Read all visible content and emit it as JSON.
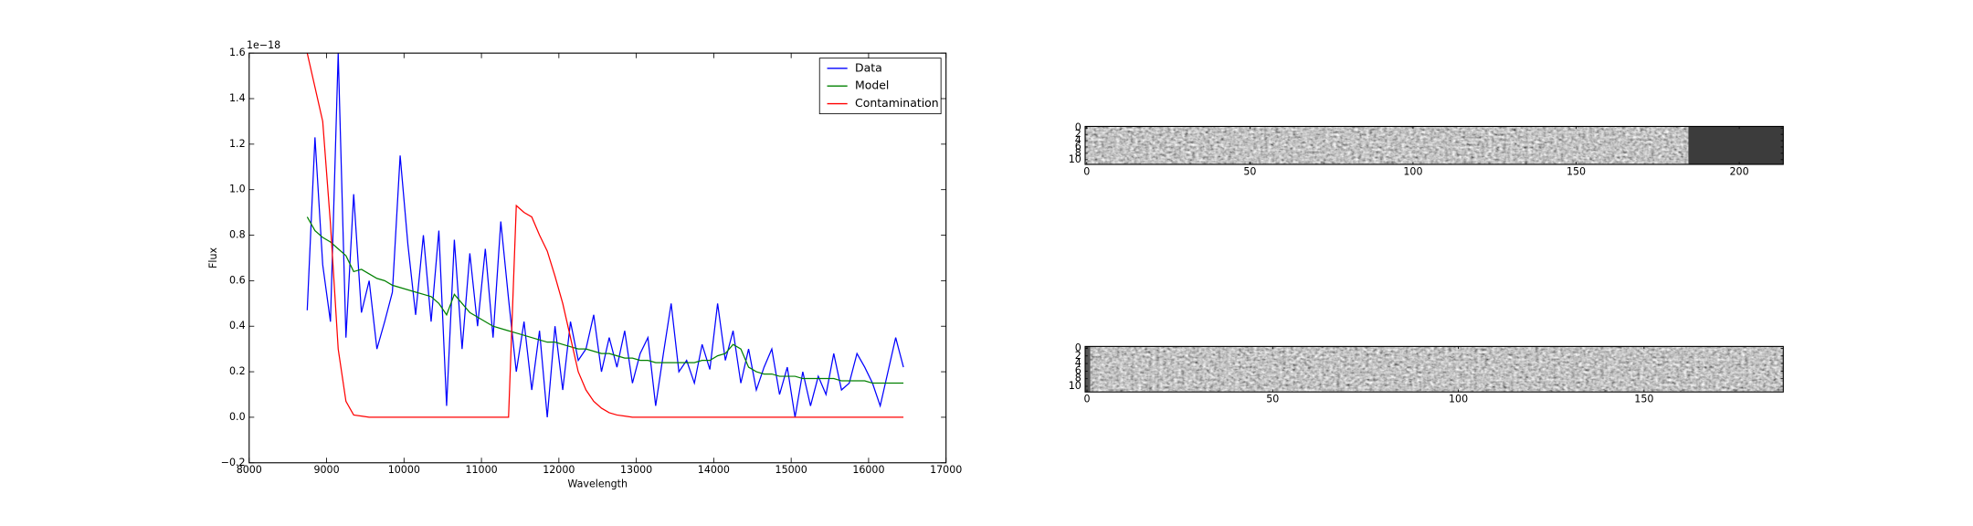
{
  "chart_data": [
    {
      "type": "line",
      "xlabel": "Wavelength",
      "ylabel": "Flux",
      "offset_text": "1e−18",
      "x": [
        8750,
        8850,
        8950,
        9050,
        9150,
        9250,
        9350,
        9450,
        9550,
        9650,
        9750,
        9850,
        9950,
        10050,
        10150,
        10250,
        10350,
        10450,
        10550,
        10650,
        10750,
        10850,
        10950,
        11050,
        11150,
        11250,
        11350,
        11450,
        11550,
        11650,
        11750,
        11850,
        11950,
        12050,
        12150,
        12250,
        12350,
        12450,
        12550,
        12650,
        12750,
        12850,
        12950,
        13050,
        13150,
        13250,
        13350,
        13450,
        13550,
        13650,
        13750,
        13850,
        13950,
        14050,
        14150,
        14250,
        14350,
        14450,
        14550,
        14650,
        14750,
        14850,
        14950,
        15050,
        15150,
        15250,
        15350,
        15450,
        15550,
        15650,
        15750,
        15850,
        15950,
        16050,
        16150,
        16250,
        16350,
        16450
      ],
      "series": [
        {
          "name": "Data",
          "color": "#0000ff",
          "values": [
            0.47,
            1.23,
            0.67,
            0.42,
            1.6,
            0.35,
            0.98,
            0.46,
            0.6,
            0.3,
            0.42,
            0.55,
            1.15,
            0.76,
            0.45,
            0.8,
            0.42,
            0.82,
            0.05,
            0.78,
            0.3,
            0.72,
            0.4,
            0.74,
            0.35,
            0.86,
            0.52,
            0.2,
            0.42,
            0.12,
            0.38,
            0,
            0.4,
            0.12,
            0.42,
            0.25,
            0.3,
            0.45,
            0.2,
            0.35,
            0.22,
            0.38,
            0.15,
            0.28,
            0.35,
            0.05,
            0.28,
            0.5,
            0.2,
            0.25,
            0.15,
            0.32,
            0.21,
            0.5,
            0.25,
            0.38,
            0.15,
            0.3,
            0.12,
            0.22,
            0.3,
            0.1,
            0.22,
            0,
            0.2,
            0.05,
            0.18,
            0.1,
            0.28,
            0.12,
            0.15,
            0.28,
            0.22,
            0.15,
            0.05,
            0.2,
            0.35,
            0.22
          ]
        },
        {
          "name": "Model",
          "color": "#008000",
          "values": [
            0.88,
            0.82,
            0.79,
            0.77,
            0.74,
            0.71,
            0.64,
            0.65,
            0.63,
            0.61,
            0.6,
            0.58,
            0.57,
            0.56,
            0.55,
            0.54,
            0.53,
            0.5,
            0.45,
            0.54,
            0.5,
            0.46,
            0.44,
            0.42,
            0.4,
            0.39,
            0.38,
            0.37,
            0.36,
            0.35,
            0.34,
            0.33,
            0.33,
            0.32,
            0.31,
            0.3,
            0.3,
            0.29,
            0.28,
            0.28,
            0.27,
            0.26,
            0.26,
            0.25,
            0.25,
            0.24,
            0.24,
            0.24,
            0.24,
            0.24,
            0.24,
            0.25,
            0.25,
            0.27,
            0.28,
            0.32,
            0.3,
            0.22,
            0.2,
            0.19,
            0.19,
            0.18,
            0.18,
            0.18,
            0.17,
            0.17,
            0.17,
            0.17,
            0.17,
            0.16,
            0.16,
            0.16,
            0.16,
            0.15,
            0.15,
            0.15,
            0.15,
            0.15
          ]
        },
        {
          "name": "Contamination",
          "color": "#ff0000",
          "values": [
            1.6,
            1.45,
            1.3,
            0.85,
            0.3,
            0.07,
            0.01,
            0.005,
            0,
            0,
            0,
            0,
            0,
            0,
            0,
            0,
            0,
            0,
            0,
            0,
            0,
            0,
            0,
            0,
            0,
            0,
            0,
            0.93,
            0.9,
            0.88,
            0.8,
            0.73,
            0.62,
            0.5,
            0.35,
            0.2,
            0.12,
            0.07,
            0.04,
            0.02,
            0.01,
            0.005,
            0,
            0,
            0,
            0,
            0,
            0,
            0,
            0,
            0,
            0,
            0,
            0,
            0,
            0,
            0,
            0,
            0,
            0,
            0,
            0,
            0,
            0,
            0,
            0,
            0,
            0,
            0,
            0,
            0,
            0,
            0,
            0,
            0,
            0,
            0,
            0
          ]
        }
      ],
      "xlim": [
        8000,
        17000
      ],
      "xticks": [
        8000,
        9000,
        10000,
        11000,
        12000,
        13000,
        14000,
        15000,
        16000,
        17000
      ],
      "ylim": [
        -0.2,
        1.6
      ],
      "yticks": [
        {
          "value": -0.2,
          "label": "−0.2"
        },
        {
          "value": 0,
          "label": "0.0"
        },
        0.2,
        0.4,
        0.6,
        0.8,
        {
          "value": 1,
          "label": "1.0"
        },
        1.2,
        1.4,
        1.6
      ],
      "legend": "upper right"
    },
    {
      "type": "image",
      "xlim": [
        -0.5,
        213.5
      ],
      "xticks": [
        0,
        50,
        100,
        150,
        200
      ],
      "ylim": [
        11.5,
        -0.5
      ],
      "yticks": [
        0,
        2,
        4,
        6,
        8,
        10
      ]
    },
    {
      "type": "image",
      "xlim": [
        -0.5,
        187.5
      ],
      "xticks": [
        0,
        50,
        100,
        150
      ],
      "ylim": [
        11.5,
        -0.5
      ],
      "yticks": [
        0,
        2,
        4,
        6,
        8,
        10
      ]
    }
  ]
}
